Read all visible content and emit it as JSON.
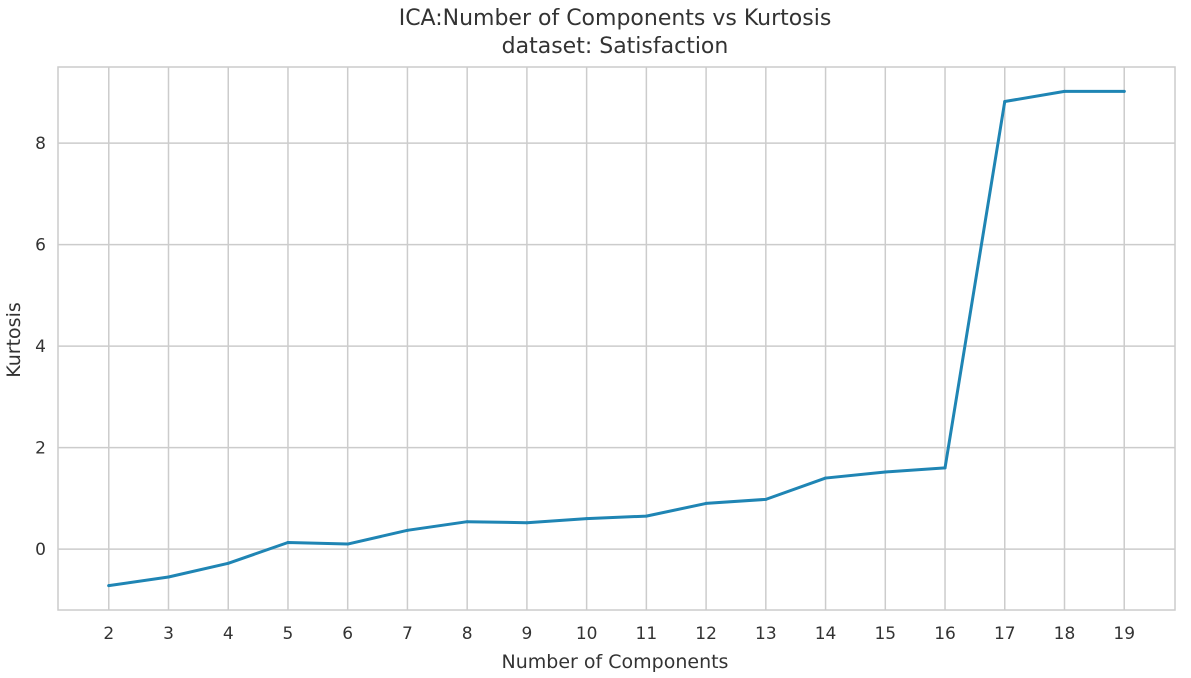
{
  "chart_data": {
    "type": "line",
    "title": "ICA:Number of Components vs Kurtosis",
    "subtitle": "dataset: Satisfaction",
    "xlabel": "Number of Components",
    "ylabel": "Kurtosis",
    "x": [
      2,
      3,
      4,
      5,
      6,
      7,
      8,
      9,
      10,
      11,
      12,
      13,
      14,
      15,
      16,
      17,
      18,
      19
    ],
    "x_tick_labels": [
      "2",
      "3",
      "4",
      "5",
      "6",
      "7",
      "8",
      "9",
      "10",
      "11",
      "12",
      "13",
      "14",
      "15",
      "16",
      "17",
      "18",
      "19"
    ],
    "y_ticks": [
      0,
      2,
      4,
      6,
      8
    ],
    "y_tick_labels": [
      "0",
      "2",
      "4",
      "6",
      "8"
    ],
    "xlim": [
      1.15,
      19.85
    ],
    "ylim": [
      -1.2,
      9.5
    ],
    "grid": true,
    "series": [
      {
        "values": [
          -0.72,
          -0.55,
          -0.28,
          0.13,
          0.1,
          0.37,
          0.54,
          0.52,
          0.6,
          0.65,
          0.9,
          0.98,
          1.4,
          1.52,
          1.6,
          8.82,
          9.02,
          9.02
        ],
        "color": "#1f85b4"
      }
    ]
  }
}
